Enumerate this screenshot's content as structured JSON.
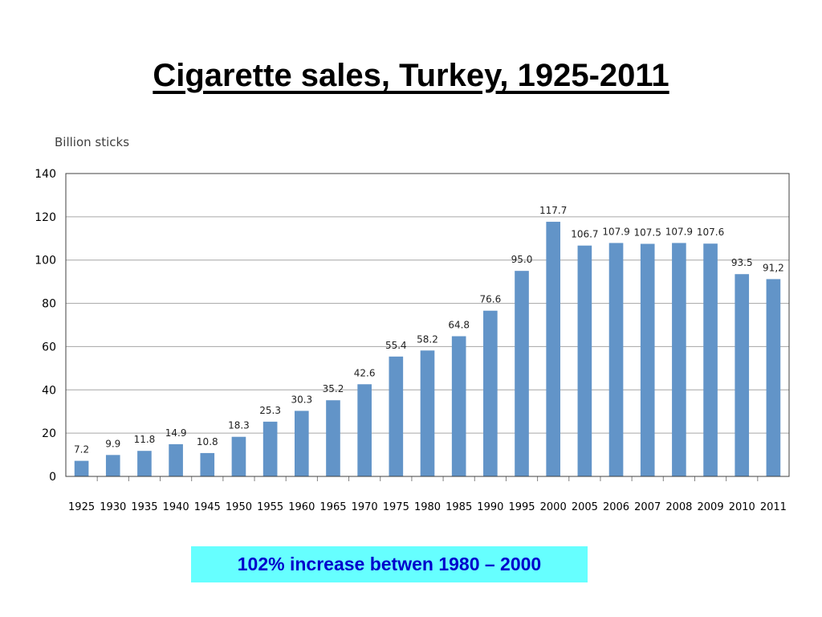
{
  "slide": {
    "title": "Cigarette sales, Turkey, 1925-2011",
    "note": "102% increase betwen 1980 – 2000"
  },
  "colors": {
    "bar": "#6294c8",
    "grid": "#a6a6a6",
    "note_bg": "#66ffff",
    "note_text": "#0000cc"
  },
  "chart_data": {
    "type": "bar",
    "title": "",
    "unit_label": "Billion sticks",
    "xlabel": "",
    "ylabel": "",
    "ylim": [
      0,
      140
    ],
    "yticks": [
      0,
      20,
      40,
      60,
      80,
      100,
      120,
      140
    ],
    "grid": true,
    "legend": "none",
    "categories": [
      "1925",
      "1930",
      "1935",
      "1940",
      "1945",
      "1950",
      "1955",
      "1960",
      "1965",
      "1970",
      "1975",
      "1980",
      "1985",
      "1990",
      "1995",
      "2000",
      "2005",
      "2006",
      "2007",
      "2008",
      "2009",
      "2010",
      "2011"
    ],
    "values": [
      7.2,
      9.9,
      11.8,
      14.9,
      10.8,
      18.3,
      25.3,
      30.3,
      35.2,
      42.6,
      55.4,
      58.2,
      64.8,
      76.6,
      95.0,
      117.7,
      106.7,
      107.9,
      107.5,
      107.9,
      107.6,
      93.5,
      91.2
    ],
    "data_labels": [
      "7.2",
      "9.9",
      "11.8",
      "14.9",
      "10.8",
      "18.3",
      "25.3",
      "30.3",
      "35.2",
      "42.6",
      "55.4",
      "58.2",
      "64.8",
      "76.6",
      "95.0",
      "117.7",
      "106.7",
      "107.9",
      "107.5",
      "107.9",
      "107.6",
      "93.5",
      "91,2"
    ]
  }
}
